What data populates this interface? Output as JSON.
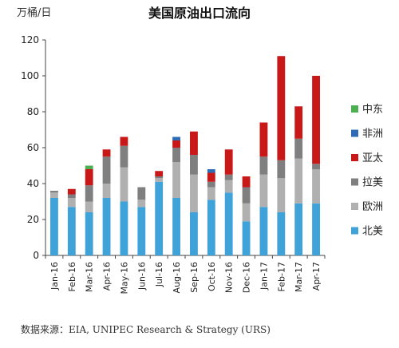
{
  "header": {
    "unit": "万桶/日",
    "title": "美国原油出口流向"
  },
  "source": "数据来源：EIA, UNIPEC Research & Strategy (URS)",
  "chart_data": {
    "type": "bar",
    "stacked": true,
    "categories": [
      "Jan-16",
      "Feb-16",
      "Mar-16",
      "Apr-16",
      "May-16",
      "Jun-16",
      "Jul-16",
      "Aug-16",
      "Sep-16",
      "Oct-16",
      "Nov-16",
      "Dec-16",
      "Jan-17",
      "Feb-17",
      "Mar-17",
      "Apr-17"
    ],
    "ylim": [
      0,
      120
    ],
    "yticks": [
      0,
      20,
      40,
      60,
      80,
      100,
      120
    ],
    "grid": false,
    "legend_position": "right",
    "series": [
      {
        "name": "北美",
        "color": "#3fa2d8",
        "values": [
          32,
          27,
          24,
          32,
          30,
          27,
          41,
          32,
          24,
          31,
          35,
          19,
          27,
          24,
          29,
          29
        ]
      },
      {
        "name": "欧洲",
        "color": "#b0b0b0",
        "values": [
          3,
          5,
          6,
          8,
          19,
          4,
          2,
          20,
          21,
          7,
          7,
          10,
          18,
          19,
          25,
          19
        ]
      },
      {
        "name": "拉美",
        "color": "#7f7f7f",
        "values": [
          1,
          2,
          9,
          15,
          12,
          7,
          1,
          8,
          11,
          3,
          3,
          9,
          10,
          10,
          11,
          3
        ]
      },
      {
        "name": "亚太",
        "color": "#c81818",
        "values": [
          0,
          3,
          9,
          4,
          5,
          0,
          3,
          4,
          13,
          5,
          14,
          6,
          19,
          58,
          18,
          49
        ]
      },
      {
        "name": "非洲",
        "color": "#2e6db5",
        "values": [
          0,
          0,
          0,
          0,
          0,
          0,
          0,
          2,
          0,
          2,
          0,
          0,
          0,
          0,
          0,
          0
        ]
      },
      {
        "name": "中东",
        "color": "#4caf50",
        "values": [
          0,
          0,
          2,
          0,
          0,
          0,
          0,
          0,
          0,
          0,
          0,
          0,
          0,
          0,
          0,
          0
        ]
      }
    ],
    "legend_order": [
      "中东",
      "非洲",
      "亚太",
      "拉美",
      "欧洲",
      "北美"
    ]
  }
}
